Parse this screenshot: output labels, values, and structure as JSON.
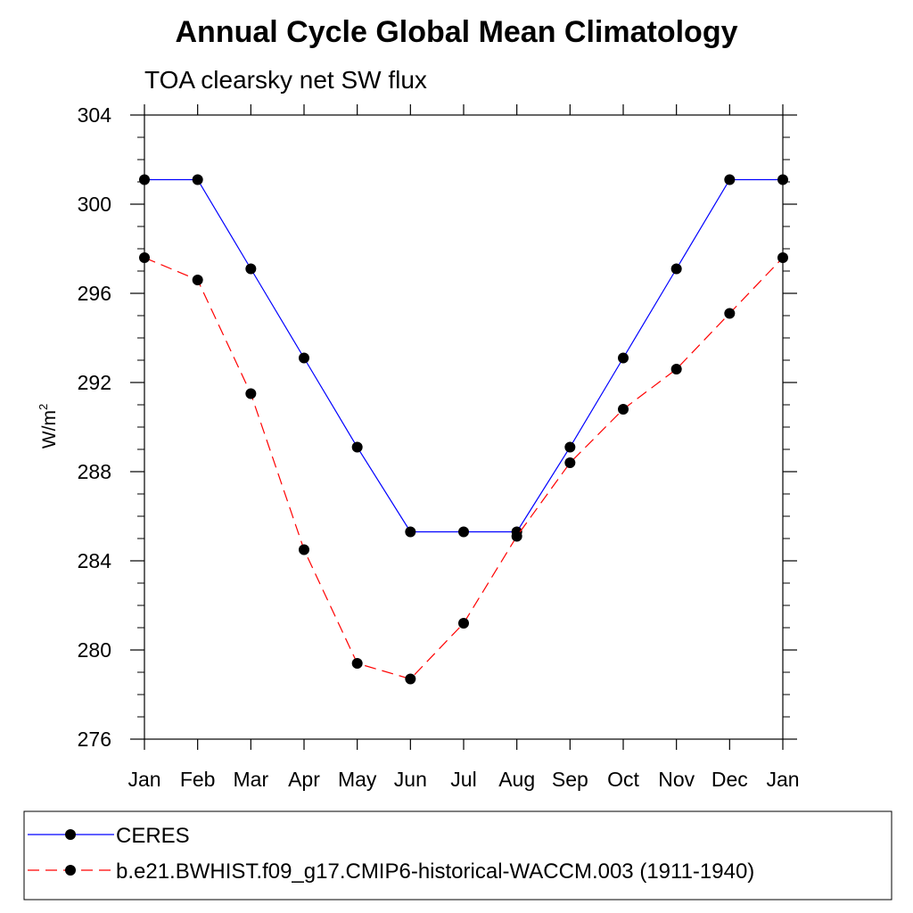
{
  "chart_data": {
    "type": "line",
    "title": "Annual Cycle Global Mean Climatology",
    "subtitle": "TOA clearsky net SW flux",
    "xlabel": "",
    "ylabel": "W/m",
    "ylabel_superscript": "2",
    "categories": [
      "Jan",
      "Feb",
      "Mar",
      "Apr",
      "May",
      "Jun",
      "Jul",
      "Aug",
      "Sep",
      "Oct",
      "Nov",
      "Dec",
      "Jan"
    ],
    "ylim": [
      276,
      304
    ],
    "yticks": [
      276,
      280,
      284,
      288,
      292,
      296,
      300,
      304
    ],
    "grid": false,
    "legend_position": "bottom",
    "series": [
      {
        "name": "CERES",
        "color": "#0000ff",
        "dashed": false,
        "marker": "filled-circle",
        "values": [
          301.1,
          301.1,
          297.1,
          293.1,
          289.1,
          285.3,
          285.3,
          285.3,
          289.1,
          293.1,
          297.1,
          301.1,
          301.1
        ]
      },
      {
        "name": "b.e21.BWHIST.f09_g17.CMIP6-historical-WACCM.003 (1911-1940)",
        "color": "#ff0000",
        "dashed": true,
        "marker": "filled-circle",
        "values": [
          297.6,
          296.6,
          291.5,
          284.5,
          279.4,
          278.7,
          281.2,
          285.1,
          288.4,
          290.8,
          292.6,
          295.1,
          297.6
        ]
      }
    ]
  }
}
